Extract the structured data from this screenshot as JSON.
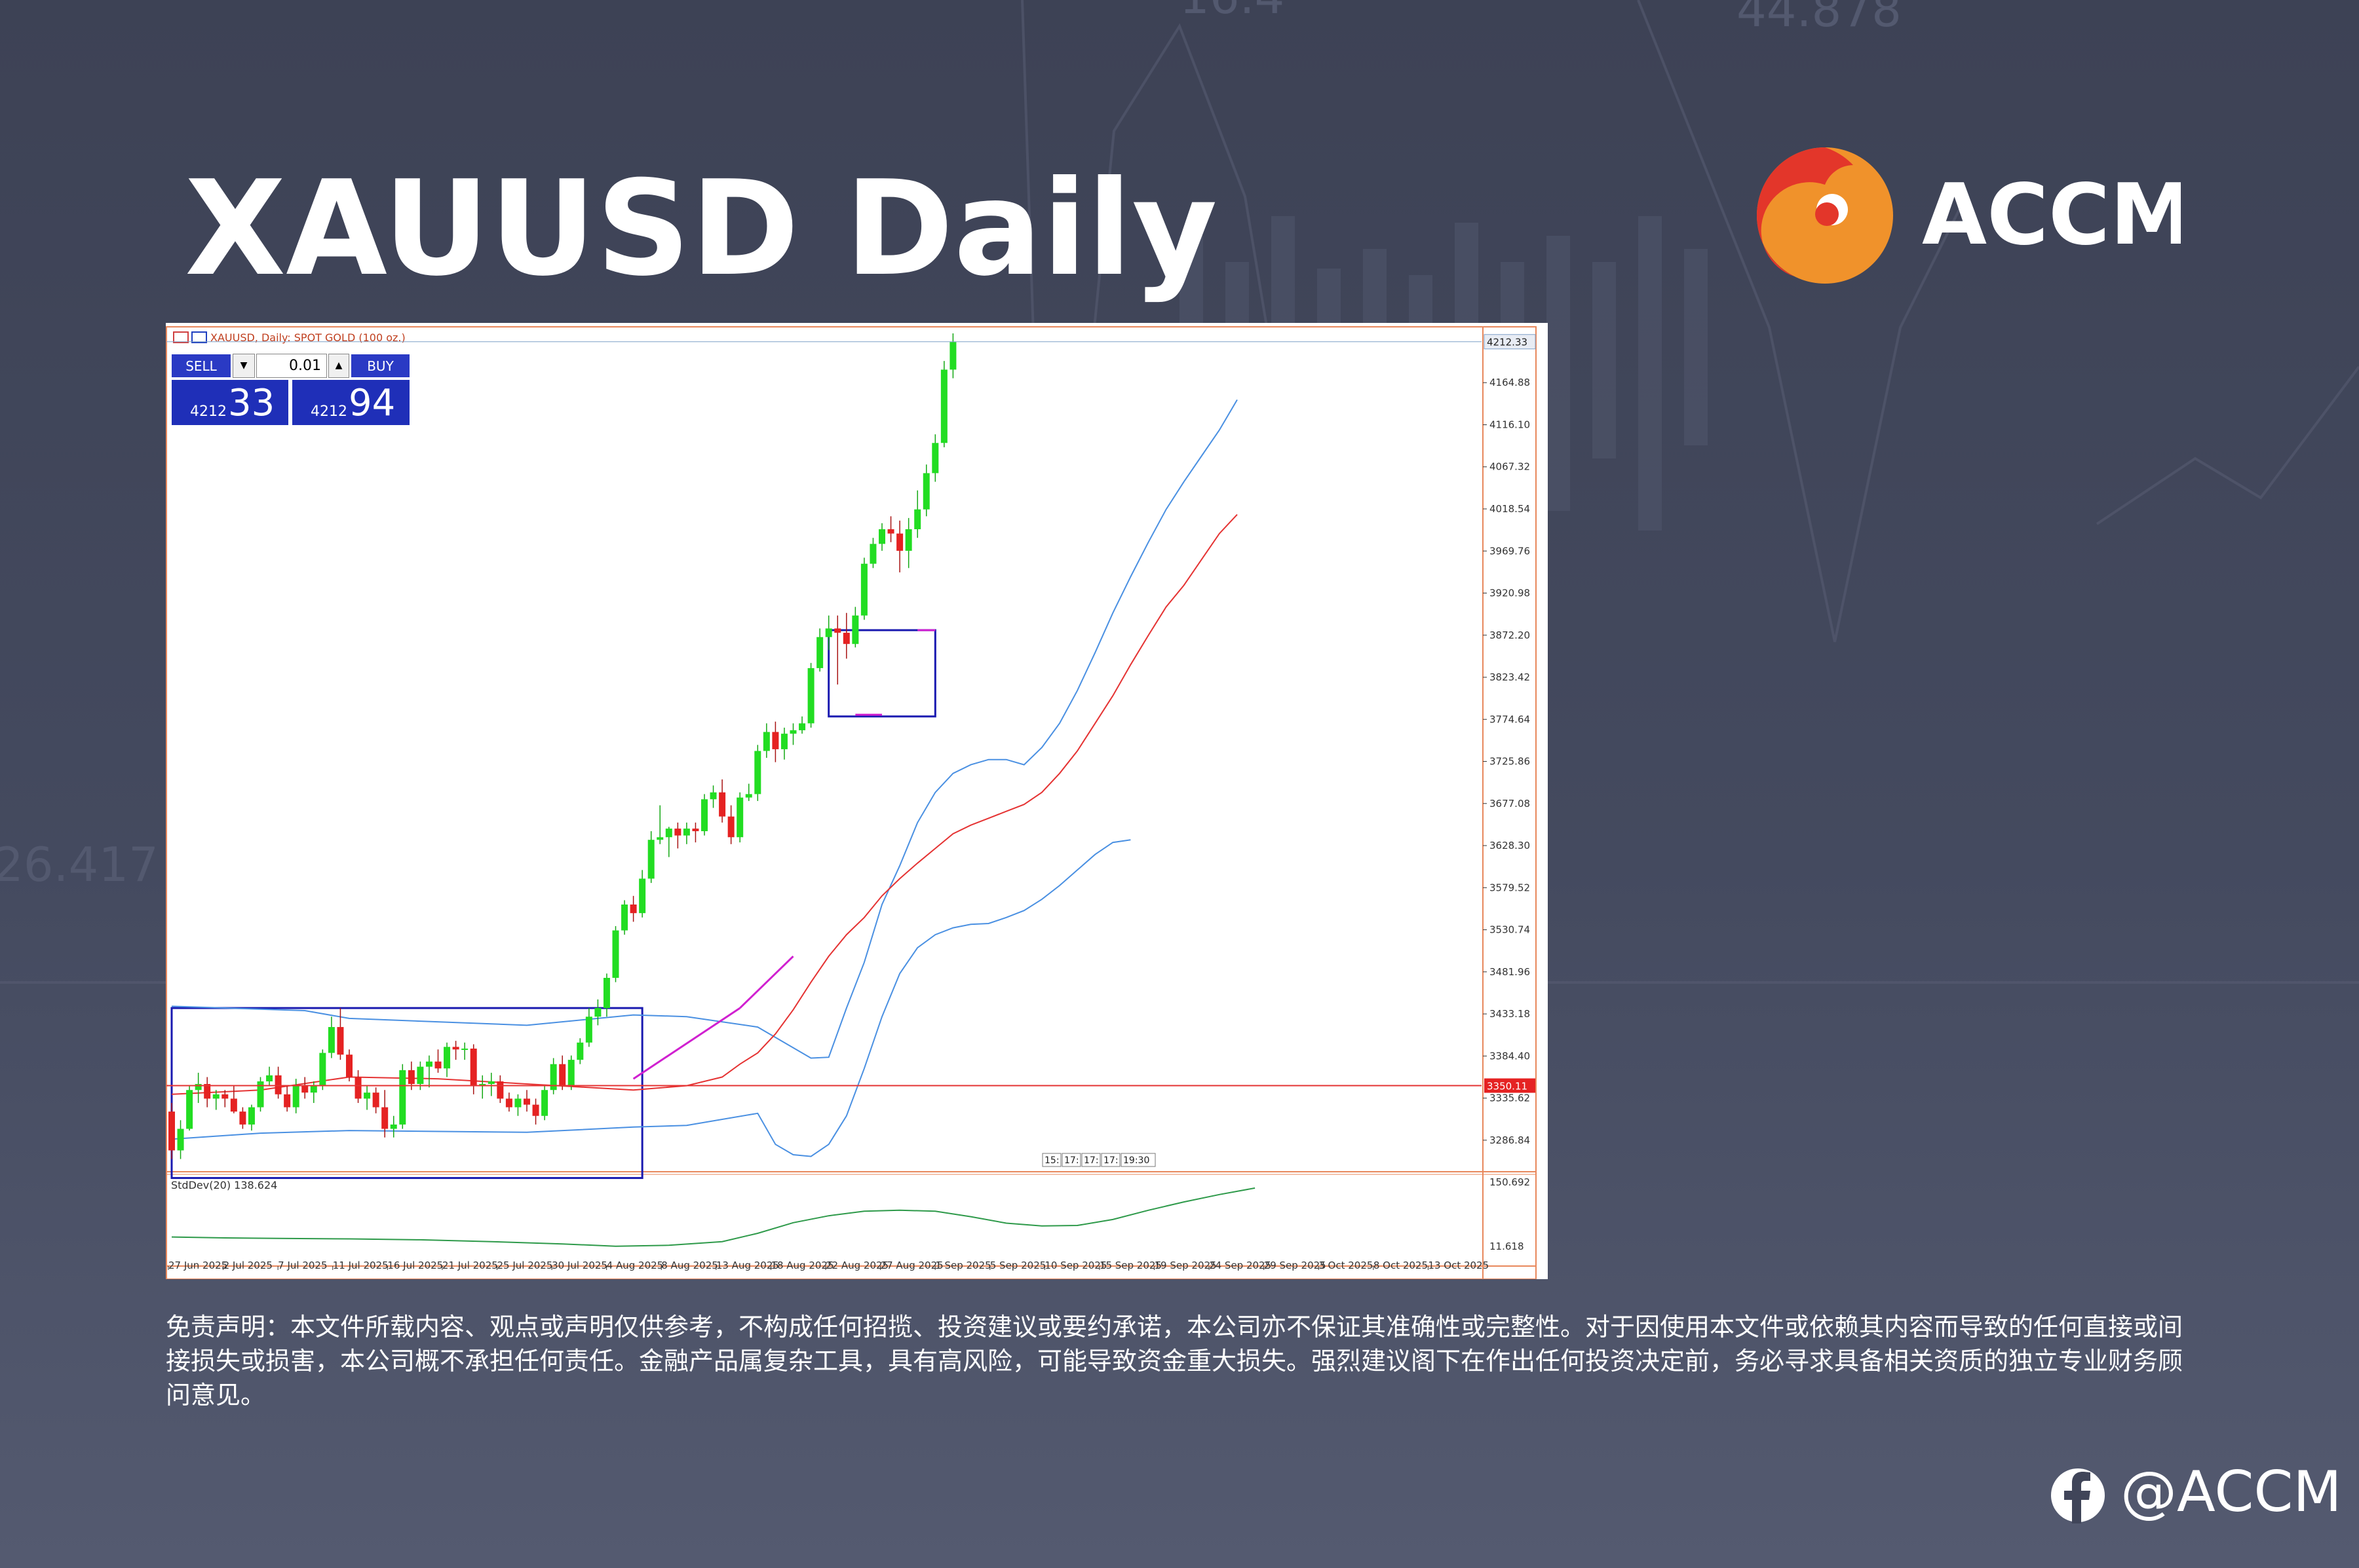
{
  "slide": {
    "title": "XAUUSD Daily",
    "brand": "ACCM",
    "social_handle": "@ACCM",
    "disclaimer": "免责声明：本文件所载内容、观点或声明仅供参考，不构成任何招揽、投资建议或要约承诺，本公司亦不保证其准确性或完整性。对于因使用本文件或依赖其内容而导致的任何直接或间接损失或损害，本公司概不承担任何责任。金融产品属复杂工具，具有高风险，可能导致资金重大损失。强烈建议阁下在作出任何投资决定前，务必寻求具备相关资质的独立专业财务顾问意见。",
    "background_numbers": [
      "26.417",
      "16.4",
      "44.878"
    ]
  },
  "trade_panel": {
    "sell_label": "SELL",
    "buy_label": "BUY",
    "lot": "0.01",
    "sell_price_small": "4212",
    "sell_price_big": "33",
    "buy_price_small": "4212",
    "buy_price_big": "94"
  },
  "chart_data": {
    "type": "candlestick",
    "symbol_label": "XAUUSD, Daily: SPOT GOLD (100 oz.)",
    "y_ticks": [
      4164.88,
      4116.1,
      4067.32,
      4018.54,
      3969.76,
      3920.98,
      3872.2,
      3823.42,
      3774.64,
      3725.86,
      3677.08,
      3628.3,
      3579.52,
      3530.74,
      3481.96,
      3433.18,
      3384.4,
      3335.62,
      3286.84
    ],
    "y_tick_labels": [
      "4164.88",
      "4116.10",
      "4067.32",
      "4018.54",
      "3969.76",
      "3920.98",
      "3872.20",
      "3823.42",
      "3774.64",
      "3725.86",
      "3677.08",
      "3628.30",
      "3579.52",
      "3530.74",
      "3481.96",
      "3433.18",
      "3384.40",
      "3335.62",
      "3286.84"
    ],
    "ylim": [
      3270,
      4222
    ],
    "current_price": 4212.33,
    "current_price_label": "4212.33",
    "horizontal_line": 3350.11,
    "horizontal_line_label": "3350.11",
    "x_labels": [
      "27 Jun 2025",
      "2 Jul 2025",
      "7 Jul 2025",
      "11 Jul 2025",
      "16 Jul 2025",
      "21 Jul 2025",
      "25 Jul 2025",
      "30 Jul 2025",
      "4 Aug 2025",
      "8 Aug 2025",
      "13 Aug 2025",
      "18 Aug 2025",
      "22 Aug 2025",
      "27 Aug 2025",
      "1 Sep 2025",
      "5 Sep 2025",
      "10 Sep 2025",
      "15 Sep 2025",
      "19 Sep 2025",
      "24 Sep 2025",
      "29 Sep 2025",
      "3 Oct 2025",
      "8 Oct 2025",
      "13 Oct 2025"
    ],
    "ohlc": [
      [
        3320,
        3330,
        3265,
        3275
      ],
      [
        3275,
        3310,
        3265,
        3300
      ],
      [
        3300,
        3350,
        3298,
        3345
      ],
      [
        3345,
        3365,
        3330,
        3352
      ],
      [
        3352,
        3360,
        3325,
        3335
      ],
      [
        3335,
        3345,
        3322,
        3340
      ],
      [
        3340,
        3345,
        3325,
        3335
      ],
      [
        3335,
        3350,
        3318,
        3320
      ],
      [
        3320,
        3325,
        3300,
        3305
      ],
      [
        3305,
        3328,
        3298,
        3325
      ],
      [
        3325,
        3360,
        3320,
        3355
      ],
      [
        3355,
        3372,
        3350,
        3362
      ],
      [
        3362,
        3372,
        3335,
        3340
      ],
      [
        3340,
        3350,
        3320,
        3325
      ],
      [
        3325,
        3358,
        3318,
        3350
      ],
      [
        3350,
        3360,
        3335,
        3342
      ],
      [
        3342,
        3355,
        3330,
        3350
      ],
      [
        3350,
        3392,
        3345,
        3388
      ],
      [
        3388,
        3430,
        3382,
        3418
      ],
      [
        3418,
        3440,
        3380,
        3386
      ],
      [
        3386,
        3392,
        3355,
        3360
      ],
      [
        3360,
        3368,
        3330,
        3335
      ],
      [
        3335,
        3350,
        3322,
        3342
      ],
      [
        3342,
        3348,
        3318,
        3325
      ],
      [
        3325,
        3345,
        3290,
        3300
      ],
      [
        3300,
        3315,
        3290,
        3305
      ],
      [
        3305,
        3375,
        3300,
        3368
      ],
      [
        3368,
        3378,
        3345,
        3352
      ],
      [
        3352,
        3378,
        3345,
        3372
      ],
      [
        3372,
        3385,
        3348,
        3378
      ],
      [
        3378,
        3392,
        3365,
        3370
      ],
      [
        3370,
        3400,
        3360,
        3395
      ],
      [
        3395,
        3402,
        3380,
        3392
      ],
      [
        3392,
        3400,
        3380,
        3393
      ],
      [
        3393,
        3398,
        3340,
        3350
      ],
      [
        3350,
        3362,
        3335,
        3352
      ],
      [
        3352,
        3365,
        3338,
        3355
      ],
      [
        3355,
        3362,
        3330,
        3335
      ],
      [
        3335,
        3342,
        3320,
        3325
      ],
      [
        3325,
        3340,
        3315,
        3335
      ],
      [
        3335,
        3345,
        3320,
        3328
      ],
      [
        3328,
        3335,
        3305,
        3315
      ],
      [
        3315,
        3350,
        3310,
        3345
      ],
      [
        3345,
        3382,
        3340,
        3375
      ],
      [
        3375,
        3385,
        3345,
        3350
      ],
      [
        3350,
        3385,
        3345,
        3380
      ],
      [
        3380,
        3405,
        3375,
        3400
      ],
      [
        3400,
        3440,
        3395,
        3430
      ],
      [
        3430,
        3450,
        3420,
        3440
      ],
      [
        3440,
        3480,
        3430,
        3475
      ],
      [
        3475,
        3535,
        3470,
        3530
      ],
      [
        3530,
        3565,
        3525,
        3560
      ],
      [
        3560,
        3570,
        3540,
        3550
      ],
      [
        3550,
        3600,
        3545,
        3590
      ],
      [
        3590,
        3645,
        3585,
        3635
      ],
      [
        3635,
        3675,
        3630,
        3638
      ],
      [
        3638,
        3650,
        3615,
        3648
      ],
      [
        3648,
        3655,
        3625,
        3640
      ],
      [
        3640,
        3655,
        3630,
        3648
      ],
      [
        3648,
        3655,
        3632,
        3645
      ],
      [
        3645,
        3688,
        3640,
        3682
      ],
      [
        3682,
        3698,
        3672,
        3690
      ],
      [
        3690,
        3705,
        3655,
        3662
      ],
      [
        3662,
        3675,
        3630,
        3638
      ],
      [
        3638,
        3690,
        3632,
        3684
      ],
      [
        3684,
        3700,
        3680,
        3688
      ],
      [
        3688,
        3745,
        3680,
        3738
      ],
      [
        3738,
        3770,
        3730,
        3760
      ],
      [
        3760,
        3772,
        3725,
        3740
      ],
      [
        3740,
        3765,
        3728,
        3758
      ],
      [
        3758,
        3770,
        3745,
        3762
      ],
      [
        3762,
        3778,
        3758,
        3770
      ],
      [
        3770,
        3840,
        3765,
        3834
      ],
      [
        3834,
        3880,
        3830,
        3870
      ],
      [
        3870,
        3895,
        3855,
        3880
      ],
      [
        3880,
        3895,
        3815,
        3875
      ],
      [
        3875,
        3898,
        3845,
        3862
      ],
      [
        3862,
        3905,
        3858,
        3895
      ],
      [
        3895,
        3962,
        3890,
        3955
      ],
      [
        3955,
        3985,
        3950,
        3978
      ],
      [
        3978,
        4002,
        3970,
        3995
      ],
      [
        3995,
        4010,
        3980,
        3990
      ],
      [
        3990,
        4005,
        3945,
        3970
      ],
      [
        3970,
        4008,
        3950,
        3995
      ],
      [
        3995,
        4040,
        3985,
        4018
      ],
      [
        4018,
        4070,
        4010,
        4060
      ],
      [
        4060,
        4105,
        4050,
        4095
      ],
      [
        4095,
        4190,
        4090,
        4180
      ],
      [
        4180,
        4222,
        4170,
        4212
      ]
    ],
    "upper_bollinger_band": [
      [
        0,
        3442
      ],
      [
        15,
        3437
      ],
      [
        20,
        3428
      ],
      [
        40,
        3420
      ],
      [
        52,
        3432
      ],
      [
        58,
        3430
      ],
      [
        66,
        3418
      ],
      [
        72,
        3382
      ],
      [
        74,
        3383
      ],
      [
        76,
        3440
      ],
      [
        78,
        3493
      ],
      [
        80,
        3560
      ],
      [
        82,
        3605
      ],
      [
        84,
        3655
      ],
      [
        86,
        3690
      ],
      [
        88,
        3712
      ],
      [
        90,
        3722
      ],
      [
        92,
        3728
      ],
      [
        94,
        3728
      ],
      [
        96,
        3722
      ],
      [
        98,
        3742
      ],
      [
        100,
        3770
      ],
      [
        102,
        3808
      ],
      [
        104,
        3852
      ],
      [
        106,
        3898
      ],
      [
        108,
        3940
      ],
      [
        110,
        3980
      ],
      [
        112,
        4018
      ],
      [
        114,
        4050
      ],
      [
        116,
        4080
      ],
      [
        118,
        4110
      ],
      [
        120,
        4145
      ]
    ],
    "lower_bollinger_band": [
      [
        0,
        3288
      ],
      [
        10,
        3295
      ],
      [
        20,
        3298
      ],
      [
        40,
        3296
      ],
      [
        52,
        3302
      ],
      [
        58,
        3304
      ],
      [
        66,
        3318
      ],
      [
        68,
        3282
      ],
      [
        70,
        3270
      ],
      [
        72,
        3268
      ],
      [
        74,
        3282
      ],
      [
        76,
        3315
      ],
      [
        78,
        3370
      ],
      [
        80,
        3430
      ],
      [
        82,
        3480
      ],
      [
        84,
        3510
      ],
      [
        86,
        3525
      ],
      [
        88,
        3533
      ],
      [
        90,
        3537
      ],
      [
        92,
        3538
      ],
      [
        94,
        3545
      ],
      [
        96,
        3553
      ],
      [
        98,
        3566
      ],
      [
        100,
        3582
      ],
      [
        102,
        3600
      ],
      [
        104,
        3618
      ],
      [
        106,
        3632
      ],
      [
        108,
        3635
      ]
    ],
    "middle_band": [
      [
        0,
        3340
      ],
      [
        10,
        3345
      ],
      [
        20,
        3360
      ],
      [
        30,
        3358
      ],
      [
        40,
        3352
      ],
      [
        52,
        3345
      ],
      [
        58,
        3350
      ],
      [
        62,
        3360
      ],
      [
        64,
        3375
      ],
      [
        66,
        3388
      ],
      [
        68,
        3410
      ],
      [
        70,
        3438
      ],
      [
        72,
        3470
      ],
      [
        74,
        3500
      ],
      [
        76,
        3525
      ],
      [
        78,
        3545
      ],
      [
        80,
        3570
      ],
      [
        82,
        3590
      ],
      [
        84,
        3608
      ],
      [
        86,
        3625
      ],
      [
        88,
        3642
      ],
      [
        90,
        3652
      ],
      [
        92,
        3660
      ],
      [
        94,
        3668
      ],
      [
        96,
        3676
      ],
      [
        98,
        3690
      ],
      [
        100,
        3712
      ],
      [
        102,
        3738
      ],
      [
        104,
        3770
      ],
      [
        106,
        3802
      ],
      [
        108,
        3838
      ],
      [
        110,
        3872
      ],
      [
        112,
        3905
      ],
      [
        114,
        3930
      ],
      [
        116,
        3960
      ],
      [
        118,
        3990
      ],
      [
        120,
        4012
      ]
    ],
    "blue_boxes": [
      {
        "x0": 0,
        "x1": 53,
        "y0": 3440,
        "y1": 3243
      },
      {
        "x0": 74,
        "x1": 86,
        "y0": 3878,
        "y1": 3778
      }
    ],
    "magenta_segments": [
      {
        "x0": 52,
        "y0": 3358,
        "x1": 64,
        "y1": 3440
      },
      {
        "x0": 64,
        "y0": 3440,
        "x1": 70,
        "y1": 3500
      },
      {
        "x0": 77,
        "y0": 3780,
        "x1": 80,
        "y1": 3780
      },
      {
        "x0": 84,
        "y0": 3878,
        "x1": 86,
        "y1": 3878
      }
    ],
    "time_tags": [
      "15:",
      "17:",
      "17:",
      "17:",
      "19:30"
    ],
    "indicator": {
      "label": "StdDev(20) 138.624",
      "y_tick_labels": [
        "150.692",
        "11.618"
      ],
      "ylim": [
        11.618,
        150.692
      ],
      "series": [
        [
          0,
          32
        ],
        [
          6,
          30
        ],
        [
          12,
          29
        ],
        [
          20,
          28
        ],
        [
          28,
          26
        ],
        [
          36,
          22
        ],
        [
          44,
          17
        ],
        [
          50,
          12
        ],
        [
          56,
          14
        ],
        [
          62,
          22
        ],
        [
          66,
          40
        ],
        [
          70,
          63
        ],
        [
          74,
          78
        ],
        [
          78,
          88
        ],
        [
          82,
          90
        ],
        [
          86,
          88
        ],
        [
          90,
          76
        ],
        [
          94,
          62
        ],
        [
          98,
          56
        ],
        [
          102,
          57
        ],
        [
          106,
          70
        ],
        [
          110,
          90
        ],
        [
          114,
          108
        ],
        [
          118,
          124
        ],
        [
          122,
          138
        ]
      ]
    }
  },
  "colors": {
    "background": "#404559",
    "bull": "#22dd22",
    "bear": "#e52222",
    "bollinger": "#4a90e2",
    "middle_band": "#e53333",
    "box": "#1a1ab0",
    "trendline": "#d020d0",
    "stddev": "#2e9a4a",
    "logo_red": "#e3362a",
    "logo_orange": "#f0922b"
  }
}
